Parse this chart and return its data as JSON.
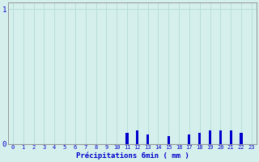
{
  "title": "",
  "xlabel": "Précipitations 6min ( mm )",
  "ylabel": "",
  "background_color": "#d5f0ec",
  "plot_bg_color": "#d5f0ec",
  "bar_color": "#0000cc",
  "grid_color": "#b8ddd9",
  "text_color": "#0000cc",
  "xlim": [
    -0.5,
    23.5
  ],
  "ylim": [
    0,
    1.05
  ],
  "yticks": [
    0,
    1
  ],
  "xticks": [
    0,
    1,
    2,
    3,
    4,
    5,
    6,
    7,
    8,
    9,
    10,
    11,
    12,
    13,
    14,
    15,
    16,
    17,
    18,
    19,
    20,
    21,
    22,
    23
  ],
  "bar_positions": [
    11,
    12,
    13,
    15,
    17,
    18,
    19,
    20,
    21,
    22
  ],
  "bar_heights": [
    0.08,
    0.1,
    0.07,
    0.06,
    0.07,
    0.08,
    0.1,
    0.1,
    0.1,
    0.08
  ],
  "bar_width": 0.25
}
